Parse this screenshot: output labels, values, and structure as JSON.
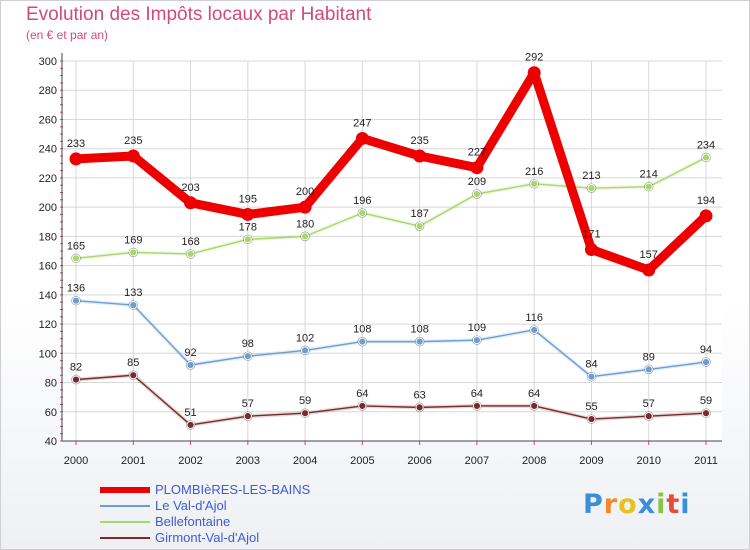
{
  "title": "Evolution des Impôts locaux par Habitant",
  "subtitle": "(en € et par an)",
  "logo": "Proxiti",
  "chart_data": {
    "type": "line",
    "title": "Evolution des Impôts locaux par Habitant",
    "subtitle": "(en € et par an)",
    "xlabel": "",
    "ylabel": "",
    "x": [
      "2000",
      "2001",
      "2002",
      "2003",
      "2004",
      "2005",
      "2006",
      "2007",
      "2008",
      "2009",
      "2010",
      "2011"
    ],
    "ylim": [
      40,
      300
    ],
    "yticks": [
      40,
      60,
      80,
      100,
      120,
      140,
      160,
      180,
      200,
      220,
      240,
      260,
      280,
      300
    ],
    "grid": true,
    "legend_position": "bottom-left",
    "series": [
      {
        "name": "PLOMBIèRES-LES-BAINS",
        "color": "#ee0000",
        "values": [
          233,
          235,
          203,
          195,
          200,
          247,
          235,
          227,
          292,
          171,
          157,
          194
        ]
      },
      {
        "name": "Le Val-d'Ajol",
        "color": "#6a9fd4",
        "values": [
          136,
          133,
          92,
          98,
          102,
          108,
          108,
          109,
          116,
          84,
          89,
          94
        ]
      },
      {
        "name": "Bellefontaine",
        "color": "#a6d96a",
        "values": [
          165,
          169,
          168,
          178,
          180,
          196,
          187,
          209,
          216,
          213,
          214,
          234
        ]
      },
      {
        "name": "Girmont-Val-d'Ajol",
        "color": "#7a2a2a",
        "values": [
          82,
          85,
          51,
          57,
          59,
          64,
          63,
          64,
          64,
          55,
          57,
          59
        ]
      }
    ]
  }
}
